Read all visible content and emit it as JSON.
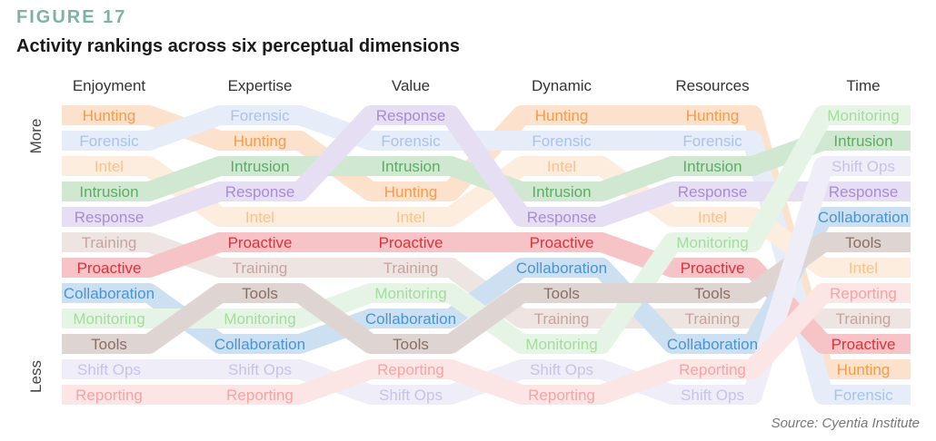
{
  "figure_label": "FIGURE 17",
  "title": "Activity rankings across six perceptual dimensions",
  "source": "Source: Cyentia Institute",
  "chart_data": {
    "type": "bump",
    "more_label": "More",
    "less_label": "Less",
    "dimensions": [
      "Enjoyment",
      "Expertise",
      "Value",
      "Dynamic",
      "Resources",
      "Time"
    ],
    "colors": {
      "Hunting": "#f59b4c",
      "Forensic": "#a9c2ea",
      "Intel": "#f8c28f",
      "Intrusion": "#5aae61",
      "Response": "#a98bd3",
      "Training": "#c4a49e",
      "Proactive": "#e0303a",
      "Collaboration": "#4a94cf",
      "Monitoring": "#a6dba0",
      "Tools": "#8c6d62",
      "Shift Ops": "#c9c2e8",
      "Reporting": "#f6a3a3"
    },
    "rankings": {
      "Enjoyment": [
        "Hunting",
        "Forensic",
        "Intel",
        "Intrusion",
        "Response",
        "Training",
        "Proactive",
        "Collaboration",
        "Monitoring",
        "Tools",
        "Shift Ops",
        "Reporting"
      ],
      "Expertise": [
        "Forensic",
        "Hunting",
        "Intrusion",
        "Response",
        "Intel",
        "Proactive",
        "Training",
        "Tools",
        "Monitoring",
        "Collaboration",
        "Shift Ops",
        "Reporting"
      ],
      "Value": [
        "Response",
        "Forensic",
        "Intrusion",
        "Hunting",
        "Intel",
        "Proactive",
        "Training",
        "Monitoring",
        "Collaboration",
        "Tools",
        "Reporting",
        "Shift Ops"
      ],
      "Dynamic": [
        "Hunting",
        "Forensic",
        "Intel",
        "Intrusion",
        "Response",
        "Proactive",
        "Collaboration",
        "Tools",
        "Training",
        "Monitoring",
        "Shift Ops",
        "Reporting"
      ],
      "Resources": [
        "Hunting",
        "Forensic",
        "Intrusion",
        "Response",
        "Intel",
        "Monitoring",
        "Proactive",
        "Tools",
        "Training",
        "Collaboration",
        "Reporting",
        "Shift Ops"
      ],
      "Time": [
        "Monitoring",
        "Intrusion",
        "Shift Ops",
        "Response",
        "Collaboration",
        "Tools",
        "Intel",
        "Reporting",
        "Training",
        "Proactive",
        "Hunting",
        "Forensic"
      ]
    }
  }
}
